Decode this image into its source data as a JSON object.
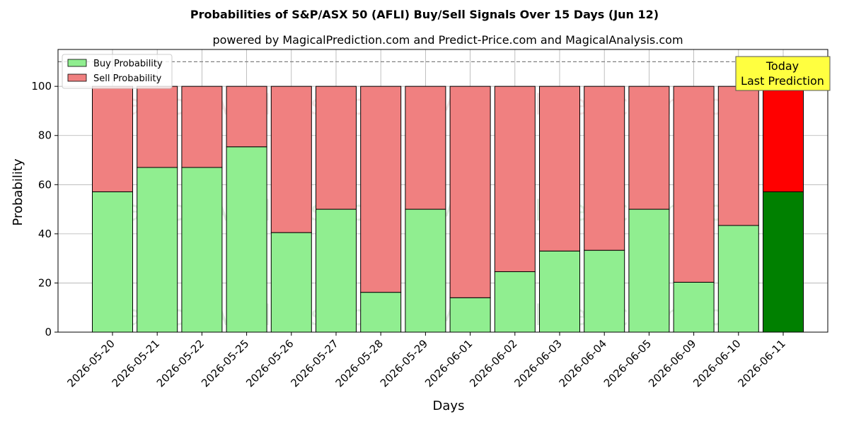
{
  "chart_data": {
    "type": "bar",
    "stacked": true,
    "title": "Probabilities of S&P/ASX 50 (AFLI) Buy/Sell Signals Over 15 Days (Jun 12)",
    "subtitle": "powered by MagicalPrediction.com and Predict-Price.com and MagicalAnalysis.com",
    "xlabel": "Days",
    "ylabel": "Probability",
    "ylim": [
      0,
      115
    ],
    "yticks": [
      0,
      20,
      40,
      60,
      80,
      100
    ],
    "grid": true,
    "legend_position": "top-left",
    "categories": [
      "2026-05-20",
      "2026-05-21",
      "2026-05-22",
      "2026-05-25",
      "2026-05-26",
      "2026-05-27",
      "2026-05-28",
      "2026-05-29",
      "2026-06-01",
      "2026-06-02",
      "2026-06-03",
      "2026-06-04",
      "2026-06-05",
      "2026-06-09",
      "2026-06-10",
      "2026-06-11"
    ],
    "series": [
      {
        "name": "Buy Probability",
        "color": "#90ee90",
        "highlight_color": "#008000",
        "values": [
          57.1,
          67.0,
          67.0,
          75.4,
          40.5,
          50.0,
          16.2,
          50.0,
          14.0,
          24.6,
          33.0,
          33.3,
          50.0,
          20.3,
          43.4,
          57.1
        ]
      },
      {
        "name": "Sell Probability",
        "color": "#f08080",
        "highlight_color": "#ff0000",
        "values": [
          42.9,
          33.0,
          33.0,
          24.6,
          59.5,
          50.0,
          83.8,
          50.0,
          86.0,
          75.4,
          67.0,
          66.7,
          50.0,
          79.7,
          56.6,
          42.9
        ]
      }
    ],
    "reference_line": {
      "y": 110,
      "style": "dashed",
      "color": "#808080"
    },
    "annotation": {
      "lines": [
        "Today",
        "Last Prediction"
      ],
      "bg": "#ffff40"
    },
    "watermarks": [
      "MagicalAnalysis.com",
      "MagicalPrediction.com"
    ]
  }
}
